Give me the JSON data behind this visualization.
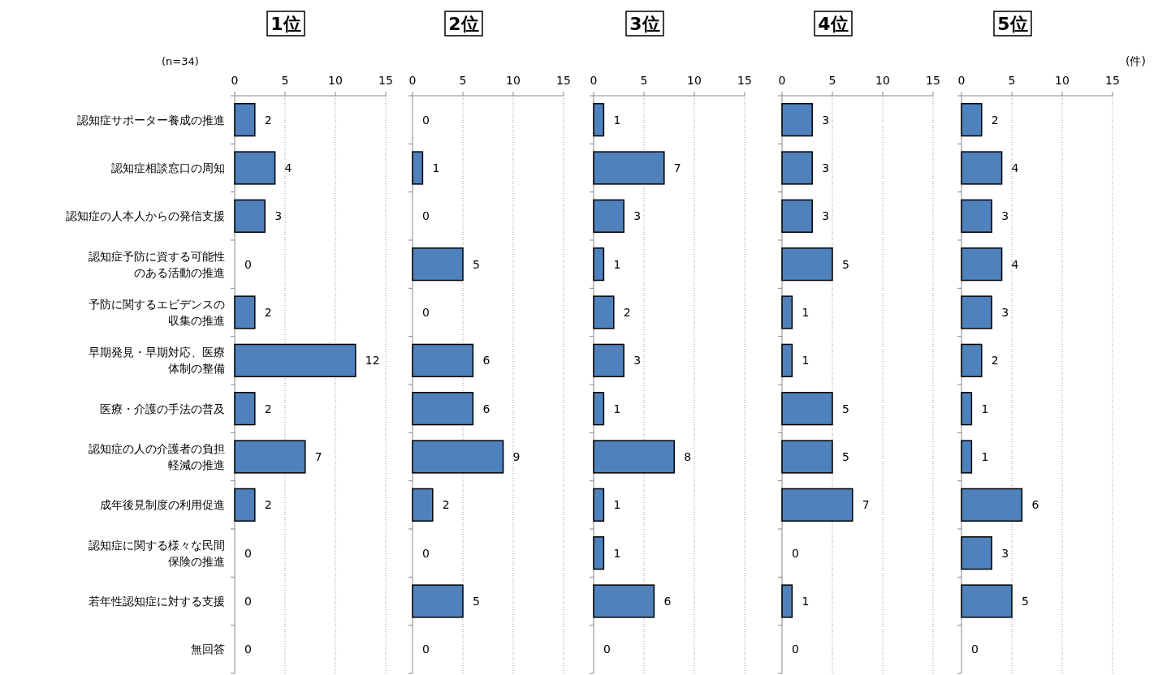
{
  "chart_data": [
    {
      "type": "bar",
      "orientation": "horizontal",
      "title": "1位",
      "annotations": [
        "(n=34)"
      ],
      "categories": [
        "認知症サポーター養成の推進",
        "認知症相談窓口の周知",
        "認知症の人本人からの発信支援",
        "認知症予防に資する可能性のある活動の推進",
        "予防に関するエビデンスの収集の推進",
        "早期発見・早期対応、医療体制の整備",
        "医療・介護の手法の普及",
        "認知症の人の介護者の負担軽減の推進",
        "成年後見制度の利用促進",
        "認知症に関する様々な民間保険の推進",
        "若年性認知症に対する支援",
        "無回答"
      ],
      "values": [
        2,
        4,
        3,
        0,
        2,
        12,
        2,
        7,
        2,
        0,
        0,
        0
      ],
      "color": "#4f81bd",
      "xlim": [
        0,
        15
      ],
      "xticks": [
        0,
        5,
        10,
        15
      ],
      "grid": "x",
      "data_labels": true
    },
    {
      "type": "bar",
      "orientation": "horizontal",
      "title": "2位",
      "tick_labels": "x",
      "categories": [
        "認知症サポーター養成の推進",
        "認知症相談窓口の周知",
        "認知症の人本人からの発信支援",
        "認知症予防に資する可能性のある活動の推進",
        "予防に関するエビデンスの収集の推進",
        "早期発見・早期対応、医療体制の整備",
        "医療・介護の手法の普及",
        "認知症の人の介護者の負担軽減の推進",
        "成年後見制度の利用促進",
        "認知症に関する様々な民間保険の推進",
        "若年性認知症に対する支援",
        "無回答"
      ],
      "values": [
        0,
        1,
        0,
        5,
        0,
        6,
        6,
        9,
        2,
        0,
        5,
        0
      ],
      "color": "#4f81bd",
      "xlim": [
        0,
        15
      ],
      "xticks": [
        0,
        5,
        10,
        15
      ],
      "grid": "x",
      "data_labels": true
    },
    {
      "type": "bar",
      "orientation": "horizontal",
      "title": "3位",
      "tick_labels": "x",
      "categories": [
        "認知症サポーター養成の推進",
        "認知症相談窓口の周知",
        "認知症の人本人からの発信支援",
        "認知症予防に資する可能性のある活動の推進",
        "予防に関するエビデンスの収集の推進",
        "早期発見・早期対応、医療体制の整備",
        "医療・介護の手法の普及",
        "認知症の人の介護者の負担軽減の推進",
        "成年後見制度の利用促進",
        "認知症に関する様々な民間保険の推進",
        "若年性認知症に対する支援",
        "無回答"
      ],
      "values": [
        1,
        7,
        3,
        1,
        2,
        3,
        1,
        8,
        1,
        1,
        6,
        0
      ],
      "color": "#4f81bd",
      "xlim": [
        0,
        15
      ],
      "xticks": [
        0,
        5,
        10,
        15
      ],
      "grid": "x",
      "data_labels": true
    },
    {
      "type": "bar",
      "orientation": "horizontal",
      "title": "4位",
      "tick_labels": "x",
      "categories": [
        "認知症サポーター養成の推進",
        "認知症相談窓口の周知",
        "認知症の人本人からの発信支援",
        "認知症予防に資する可能性のある活動の推進",
        "予防に関するエビデンスの収集の推進",
        "早期発見・早期対応、医療体制の整備",
        "医療・介護の手法の普及",
        "認知症の人の介護者の負担軽減の推進",
        "成年後見制度の利用促進",
        "認知症に関する様々な民間保険の推進",
        "若年性認知症に対する支援",
        "無回答"
      ],
      "values": [
        3,
        3,
        3,
        5,
        1,
        1,
        5,
        5,
        7,
        0,
        1,
        0
      ],
      "color": "#4f81bd",
      "xlim": [
        0,
        15
      ],
      "xticks": [
        0,
        5,
        10,
        15
      ],
      "grid": "x",
      "data_labels": true
    },
    {
      "type": "bar",
      "orientation": "horizontal",
      "title": "5位",
      "xlabel": "(件)",
      "tick_labels": "x",
      "categories": [
        "認知症サポーター養成の推進",
        "認知症相談窓口の周知",
        "認知症の人本人からの発信支援",
        "認知症予防に資する可能性のある活動の推進",
        "予防に関するエビデンスの収集の推進",
        "早期発見・早期対応、医療体制の整備",
        "医療・介護の手法の普及",
        "認知症の人の介護者の負担軽減の推進",
        "成年後見制度の利用促進",
        "認知症に関する様々な民間保険の推進",
        "若年性認知症に対する支援",
        "無回答"
      ],
      "values": [
        2,
        4,
        3,
        4,
        3,
        2,
        1,
        1,
        6,
        3,
        5,
        0
      ],
      "color": "#4f81bd",
      "xlim": [
        0,
        15
      ],
      "xticks": [
        0,
        5,
        10,
        15
      ],
      "grid": "x",
      "data_labels": true
    }
  ]
}
